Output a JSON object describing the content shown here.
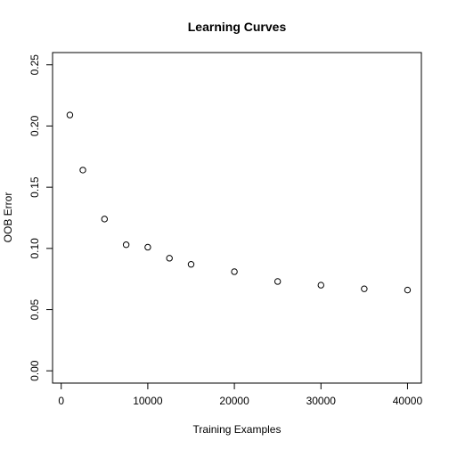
{
  "chart_data": {
    "type": "scatter",
    "title": "Learning Curves",
    "xlabel": "Training Examples",
    "ylabel": "OOB Error",
    "xlim": [
      -1000,
      41600
    ],
    "ylim": [
      -0.01,
      0.26
    ],
    "xticks": [
      0,
      10000,
      20000,
      30000,
      40000
    ],
    "xtick_labels": [
      "0",
      "10000",
      "20000",
      "30000",
      "40000"
    ],
    "yticks": [
      0.0,
      0.05,
      0.1,
      0.15,
      0.2,
      0.25
    ],
    "ytick_labels": [
      "0.00",
      "0.05",
      "0.10",
      "0.15",
      "0.20",
      "0.25"
    ],
    "grid": false,
    "marker": "open-circle",
    "color": "#000000",
    "x": [
      1000,
      2500,
      5000,
      7500,
      10000,
      12500,
      15000,
      20000,
      25000,
      30000,
      35000,
      40000
    ],
    "y": [
      0.209,
      0.164,
      0.124,
      0.103,
      0.101,
      0.092,
      0.087,
      0.081,
      0.073,
      0.07,
      0.067,
      0.066
    ]
  }
}
